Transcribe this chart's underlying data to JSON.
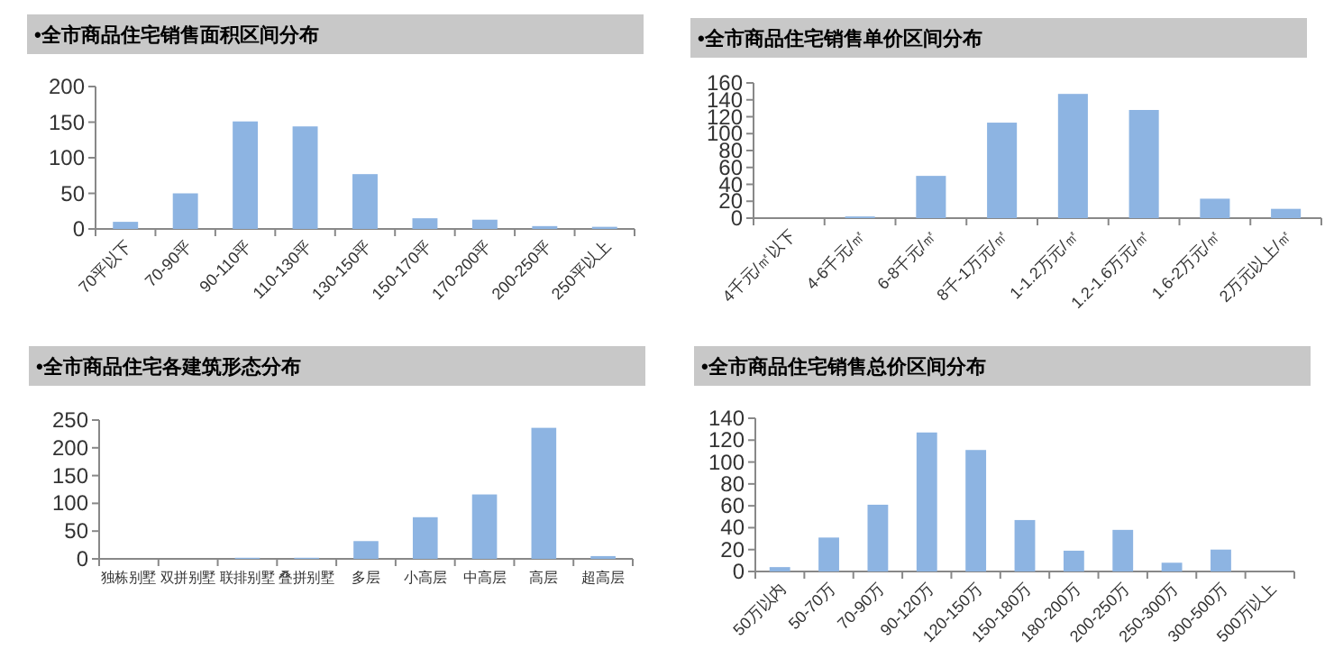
{
  "chart_data": [
    {
      "type": "bar",
      "title": "•全市商品住宅销售面积区间分布",
      "categories": [
        "70平以下",
        "70-90平",
        "90-110平",
        "110-130平",
        "130-150平",
        "150-170平",
        "170-200平",
        "200-250平",
        "250平以上"
      ],
      "values": [
        10,
        50,
        151,
        144,
        77,
        15,
        13,
        4,
        3
      ],
      "color": "#8db4e2",
      "ylim": [
        0,
        200
      ],
      "yticks": [
        0,
        50,
        100,
        150,
        200
      ]
    },
    {
      "type": "bar",
      "title": "•全市商品住宅销售单价区间分布",
      "categories": [
        "4千元/㎡以下",
        "4-6千元/㎡",
        "6-8千元/㎡",
        "8千-1万元/㎡",
        "1-1.2万元/㎡",
        "1.2-1.6万元/㎡",
        "1.6-2万元/㎡",
        "2万元以上/㎡"
      ],
      "values": [
        0,
        2,
        50,
        113,
        147,
        128,
        23,
        11
      ],
      "color": "#8db4e2",
      "ylim": [
        0,
        160
      ],
      "yticks": [
        0,
        20,
        40,
        60,
        80,
        100,
        120,
        140,
        160
      ]
    },
    {
      "type": "bar",
      "title": "•全市商品住宅各建筑形态分布",
      "categories": [
        "独栋别墅",
        "双拼别墅",
        "联排别墅",
        "叠拼别墅",
        "多层",
        "小高层",
        "中高层",
        "高层",
        "超高层"
      ],
      "values": [
        0,
        0,
        2,
        2,
        32,
        75,
        116,
        236,
        5
      ],
      "color": "#8db4e2",
      "ylim": [
        0,
        250
      ],
      "yticks": [
        0,
        50,
        100,
        150,
        200,
        250
      ]
    },
    {
      "type": "bar",
      "title": "•全市商品住宅销售总价区间分布",
      "categories": [
        "50万以内",
        "50-70万",
        "70-90万",
        "90-120万",
        "120-150万",
        "150-180万",
        "180-200万",
        "200-250万",
        "250-300万",
        "300-500万",
        "500万以上"
      ],
      "values": [
        4,
        31,
        61,
        127,
        111,
        47,
        19,
        38,
        8,
        20,
        0
      ],
      "color": "#8db4e2",
      "ylim": [
        0,
        140
      ],
      "yticks": [
        0,
        20,
        40,
        60,
        80,
        100,
        120,
        140
      ]
    }
  ]
}
